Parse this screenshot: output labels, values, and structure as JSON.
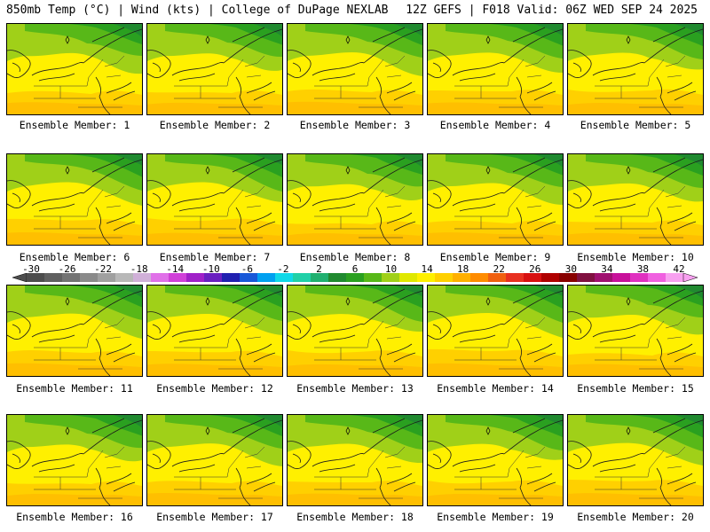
{
  "header": {
    "title_left": "850mb Temp (°C) | Wind (kts) | College of DuPage NEXLAB",
    "title_right": "12Z GEFS | F018 Valid: 06Z WED SEP 24 2025"
  },
  "colorbar": {
    "tick_labels": [
      "-30",
      "-26",
      "-22",
      "-18",
      "-14",
      "-10",
      "-6",
      "-2",
      "2",
      "6",
      "10",
      "14",
      "18",
      "22",
      "26",
      "30",
      "34",
      "38",
      "42"
    ],
    "colors": [
      "#4d4d4d",
      "#606060",
      "#737373",
      "#8a8a8a",
      "#a0a0a0",
      "#b8b8b8",
      "#d0b0d8",
      "#e070e8",
      "#d040d8",
      "#a020c8",
      "#6a20c0",
      "#2020b0",
      "#1858d8",
      "#00a0f0",
      "#10d8e8",
      "#20d0a8",
      "#20b070",
      "#208a30",
      "#2aa020",
      "#58b818",
      "#a0d018",
      "#e0e800",
      "#fff000",
      "#ffd000",
      "#ffb000",
      "#ff8c00",
      "#f06010",
      "#e83020",
      "#d81010",
      "#b00000",
      "#880000",
      "#801040",
      "#a01070",
      "#c8109a",
      "#e030c0",
      "#f060e0",
      "#f8a0f0"
    ]
  },
  "panels": [
    {
      "label": "Ensemble Member: 1"
    },
    {
      "label": "Ensemble Member: 2"
    },
    {
      "label": "Ensemble Member: 3"
    },
    {
      "label": "Ensemble Member: 4"
    },
    {
      "label": "Ensemble Member: 5"
    },
    {
      "label": "Ensemble Member: 6"
    },
    {
      "label": "Ensemble Member: 7"
    },
    {
      "label": "Ensemble Member: 8"
    },
    {
      "label": "Ensemble Member: 9"
    },
    {
      "label": "Ensemble Member: 10"
    },
    {
      "label": "Ensemble Member: 11"
    },
    {
      "label": "Ensemble Member: 12"
    },
    {
      "label": "Ensemble Member: 13"
    },
    {
      "label": "Ensemble Member: 14"
    },
    {
      "label": "Ensemble Member: 15"
    },
    {
      "label": "Ensemble Member: 16"
    },
    {
      "label": "Ensemble Member: 17"
    },
    {
      "label": "Ensemble Member: 18"
    },
    {
      "label": "Ensemble Member: 19"
    },
    {
      "label": "Ensemble Member: 20"
    }
  ],
  "map_colors": {
    "dark_green": "#208a30",
    "green": "#2aa020",
    "light_green": "#58b818",
    "yellow_green": "#a0d018",
    "yellow": "#fff000",
    "gold": "#ffd000",
    "orange": "#ffb000"
  }
}
